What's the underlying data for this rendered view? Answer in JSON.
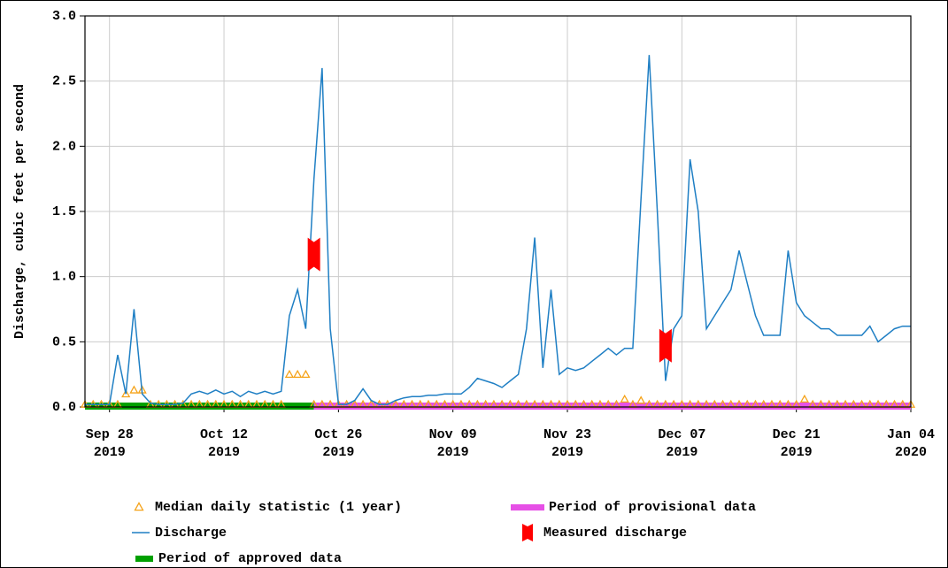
{
  "chart_data": {
    "type": "line",
    "ylabel": "Discharge, cubic feet per second",
    "ylim": [
      0,
      3.0
    ],
    "yticks": [
      {
        "value": 0,
        "label": "0.0"
      },
      0.5,
      {
        "value": 1,
        "label": "1.0"
      },
      1.5,
      {
        "value": 2,
        "label": "2.0"
      },
      2.5,
      {
        "value": 3,
        "label": "3.0"
      }
    ],
    "xlim": [
      "2019-09-25",
      "2020-01-04"
    ],
    "xticks": [
      {
        "value": "2019-09-28",
        "label": "Sep 28\n2019"
      },
      {
        "value": "2019-10-12",
        "label": "Oct 12\n2019"
      },
      {
        "value": "2019-10-26",
        "label": "Oct 26\n2019"
      },
      {
        "value": "2019-11-09",
        "label": "Nov 09\n2019"
      },
      {
        "value": "2019-11-23",
        "label": "Nov 23\n2019"
      },
      {
        "value": "2019-12-07",
        "label": "Dec 07\n2019"
      },
      {
        "value": "2019-12-21",
        "label": "Dec 21\n2019"
      },
      {
        "value": "2020-01-04",
        "label": "Jan 04\n2020"
      }
    ],
    "grid": true,
    "x": [
      "2019-09-25",
      "2019-09-26",
      "2019-09-27",
      "2019-09-28",
      "2019-09-29",
      "2019-09-30",
      "2019-10-01",
      "2019-10-02",
      "2019-10-03",
      "2019-10-04",
      "2019-10-05",
      "2019-10-06",
      "2019-10-07",
      "2019-10-08",
      "2019-10-09",
      "2019-10-10",
      "2019-10-11",
      "2019-10-12",
      "2019-10-13",
      "2019-10-14",
      "2019-10-15",
      "2019-10-16",
      "2019-10-17",
      "2019-10-18",
      "2019-10-19",
      "2019-10-20",
      "2019-10-21",
      "2019-10-22",
      "2019-10-23",
      "2019-10-24",
      "2019-10-25",
      "2019-10-26",
      "2019-10-27",
      "2019-10-28",
      "2019-10-29",
      "2019-10-30",
      "2019-10-31",
      "2019-11-01",
      "2019-11-02",
      "2019-11-03",
      "2019-11-04",
      "2019-11-05",
      "2019-11-06",
      "2019-11-07",
      "2019-11-08",
      "2019-11-09",
      "2019-11-10",
      "2019-11-11",
      "2019-11-12",
      "2019-11-13",
      "2019-11-14",
      "2019-11-15",
      "2019-11-16",
      "2019-11-17",
      "2019-11-18",
      "2019-11-19",
      "2019-11-20",
      "2019-11-21",
      "2019-11-22",
      "2019-11-23",
      "2019-11-24",
      "2019-11-25",
      "2019-11-26",
      "2019-11-27",
      "2019-11-28",
      "2019-11-29",
      "2019-11-30",
      "2019-12-01",
      "2019-12-02",
      "2019-12-03",
      "2019-12-04",
      "2019-12-05",
      "2019-12-06",
      "2019-12-07",
      "2019-12-08",
      "2019-12-09",
      "2019-12-10",
      "2019-12-11",
      "2019-12-12",
      "2019-12-13",
      "2019-12-14",
      "2019-12-15",
      "2019-12-16",
      "2019-12-17",
      "2019-12-18",
      "2019-12-19",
      "2019-12-20",
      "2019-12-21",
      "2019-12-22",
      "2019-12-23",
      "2019-12-24",
      "2019-12-25",
      "2019-12-26",
      "2019-12-27",
      "2019-12-28",
      "2019-12-29",
      "2019-12-30",
      "2019-12-31",
      "2020-01-01",
      "2020-01-02",
      "2020-01-03",
      "2020-01-04"
    ],
    "series": [
      {
        "name": "Median daily statistic (1 year)",
        "color": "#f5a31a",
        "marker": "triangle",
        "values": [
          0.02,
          0.02,
          0.02,
          0.02,
          0.02,
          0.1,
          0.13,
          0.13,
          0.02,
          0.02,
          0.02,
          0.02,
          0.02,
          0.02,
          0.02,
          0.02,
          0.02,
          0.02,
          0.02,
          0.02,
          0.02,
          0.02,
          0.02,
          0.02,
          0.02,
          0.25,
          0.25,
          0.25,
          0.02,
          0.02,
          0.02,
          0.02,
          0.02,
          0.02,
          0.02,
          0.02,
          0.02,
          0.02,
          0.02,
          0.02,
          0.02,
          0.02,
          0.02,
          0.02,
          0.02,
          0.02,
          0.02,
          0.02,
          0.02,
          0.02,
          0.02,
          0.02,
          0.02,
          0.02,
          0.02,
          0.02,
          0.02,
          0.02,
          0.02,
          0.02,
          0.02,
          0.02,
          0.02,
          0.02,
          0.02,
          0.02,
          0.06,
          0.02,
          0.05,
          0.02,
          0.02,
          0.02,
          0.02,
          0.02,
          0.02,
          0.02,
          0.02,
          0.02,
          0.02,
          0.02,
          0.02,
          0.02,
          0.02,
          0.02,
          0.02,
          0.02,
          0.02,
          0.02,
          0.06,
          0.02,
          0.02,
          0.02,
          0.02,
          0.02,
          0.02,
          0.02,
          0.02,
          0.02,
          0.02,
          0.02,
          0.02,
          0.02
        ]
      },
      {
        "name": "Discharge",
        "color": "#1f7fc4",
        "marker": "line",
        "values": [
          0.02,
          0.02,
          0.02,
          0.02,
          0.4,
          0.1,
          0.75,
          0.1,
          0.03,
          0.02,
          0.02,
          0.02,
          0.03,
          0.1,
          0.12,
          0.1,
          0.13,
          0.1,
          0.12,
          0.08,
          0.12,
          0.1,
          0.12,
          0.1,
          0.12,
          0.7,
          0.9,
          0.6,
          1.75,
          2.6,
          0.6,
          0.02,
          0.02,
          0.05,
          0.14,
          0.05,
          0.02,
          0.02,
          0.05,
          0.07,
          0.08,
          0.08,
          0.09,
          0.09,
          0.1,
          0.1,
          0.1,
          0.15,
          0.22,
          0.2,
          0.18,
          0.15,
          0.2,
          0.25,
          0.6,
          1.3,
          0.3,
          0.9,
          0.25,
          0.3,
          0.28,
          0.3,
          0.35,
          0.4,
          0.45,
          0.4,
          0.45,
          0.45,
          1.6,
          2.7,
          1.5,
          0.2,
          0.6,
          0.7,
          1.9,
          1.5,
          0.6,
          0.7,
          0.8,
          0.9,
          1.2,
          0.95,
          0.7,
          0.55,
          0.55,
          0.55,
          1.2,
          0.8,
          0.7,
          0.65,
          0.6,
          0.6,
          0.55,
          0.55,
          0.55,
          0.55,
          0.62,
          0.5,
          0.55,
          0.6,
          0.62,
          0.62
        ]
      },
      {
        "name": "Measured discharge",
        "color": "#ff0000",
        "marker": "bowtie",
        "x": [
          "2019-10-23",
          "2019-12-05"
        ],
        "values": [
          1.17,
          0.47
        ]
      }
    ],
    "periods": [
      {
        "name": "Period of approved data",
        "color": "#00a000",
        "start": "2019-09-25",
        "end": "2019-10-23"
      },
      {
        "name": "Period of provisional data",
        "color": "#e650e6",
        "start": "2019-10-23",
        "end": "2020-01-04"
      }
    ]
  }
}
